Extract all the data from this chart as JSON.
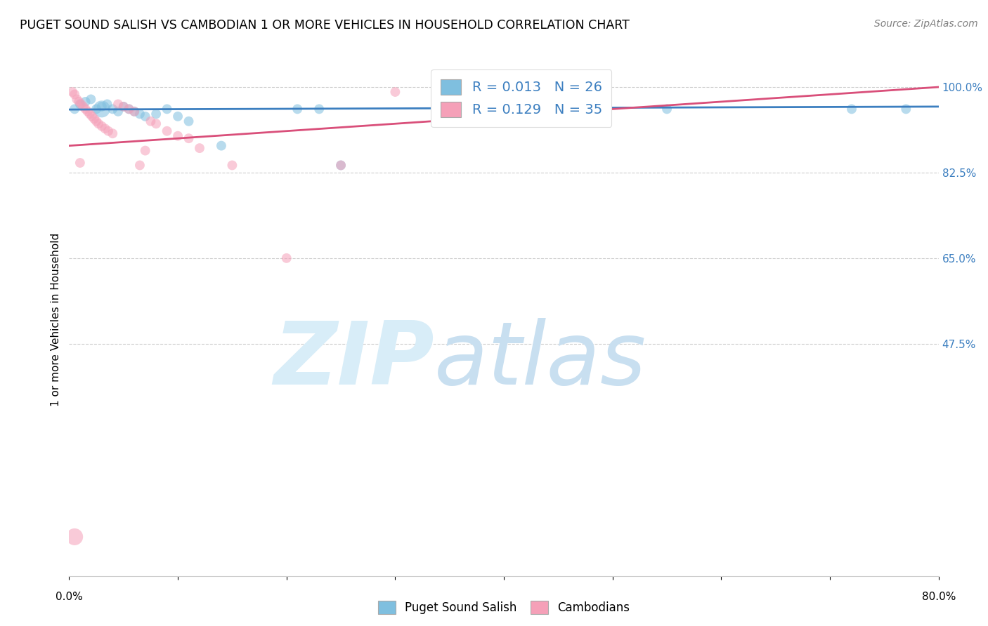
{
  "title": "PUGET SOUND SALISH VS CAMBODIAN 1 OR MORE VEHICLES IN HOUSEHOLD CORRELATION CHART",
  "source": "Source: ZipAtlas.com",
  "ylabel": "1 or more Vehicles in Household",
  "ytick_labels": [
    "100.0%",
    "82.5%",
    "65.0%",
    "47.5%"
  ],
  "ytick_values": [
    1.0,
    0.825,
    0.65,
    0.475
  ],
  "xlim": [
    0.0,
    0.8
  ],
  "ylim": [
    0.0,
    1.05
  ],
  "legend_r1": "R = 0.013",
  "legend_n1": "N = 26",
  "legend_r2": "R = 0.129",
  "legend_n2": "N = 35",
  "legend_label1": "Puget Sound Salish",
  "legend_label2": "Cambodians",
  "color_blue": "#7fbfdf",
  "color_pink": "#f5a0b8",
  "color_blue_line": "#3c7fc0",
  "color_pink_line": "#d94f7a",
  "color_r_text": "#3c7fc0",
  "watermark_zip": "ZIP",
  "watermark_atlas": "atlas",
  "watermark_color": "#d8edf8",
  "blue_x": [
    0.005,
    0.01,
    0.015,
    0.02,
    0.025,
    0.03,
    0.035,
    0.04,
    0.045,
    0.05,
    0.055,
    0.06,
    0.065,
    0.07,
    0.08,
    0.09,
    0.1,
    0.11,
    0.14,
    0.21,
    0.23,
    0.25,
    0.55,
    0.72,
    0.77,
    0.03
  ],
  "blue_y": [
    0.955,
    0.965,
    0.97,
    0.975,
    0.955,
    0.96,
    0.965,
    0.955,
    0.95,
    0.96,
    0.955,
    0.95,
    0.945,
    0.94,
    0.945,
    0.955,
    0.94,
    0.93,
    0.88,
    0.955,
    0.955,
    0.84,
    0.955,
    0.955,
    0.955,
    0.955
  ],
  "blue_size": [
    100,
    100,
    100,
    100,
    100,
    100,
    100,
    100,
    100,
    100,
    100,
    100,
    100,
    100,
    100,
    100,
    100,
    100,
    100,
    100,
    100,
    100,
    100,
    100,
    100,
    300
  ],
  "pink_x": [
    0.003,
    0.005,
    0.007,
    0.009,
    0.011,
    0.013,
    0.015,
    0.017,
    0.019,
    0.021,
    0.023,
    0.025,
    0.027,
    0.03,
    0.033,
    0.036,
    0.04,
    0.045,
    0.05,
    0.055,
    0.06,
    0.065,
    0.07,
    0.075,
    0.08,
    0.09,
    0.1,
    0.11,
    0.12,
    0.15,
    0.2,
    0.25,
    0.3,
    0.005,
    0.01
  ],
  "pink_y": [
    0.99,
    0.985,
    0.975,
    0.97,
    0.965,
    0.96,
    0.955,
    0.95,
    0.945,
    0.94,
    0.935,
    0.93,
    0.925,
    0.92,
    0.915,
    0.91,
    0.905,
    0.965,
    0.96,
    0.955,
    0.95,
    0.84,
    0.87,
    0.93,
    0.925,
    0.91,
    0.9,
    0.895,
    0.875,
    0.84,
    0.65,
    0.84,
    0.99,
    0.08,
    0.845
  ],
  "pink_size": [
    100,
    100,
    100,
    100,
    100,
    100,
    100,
    100,
    100,
    100,
    100,
    100,
    100,
    100,
    100,
    100,
    100,
    100,
    100,
    100,
    100,
    100,
    100,
    100,
    100,
    100,
    100,
    100,
    100,
    100,
    100,
    100,
    100,
    300,
    100
  ],
  "blue_trend_x": [
    0.0,
    0.8
  ],
  "blue_trend_y": [
    0.954,
    0.96
  ],
  "pink_trend_x": [
    0.0,
    0.8
  ],
  "pink_trend_y": [
    0.88,
    1.0
  ]
}
